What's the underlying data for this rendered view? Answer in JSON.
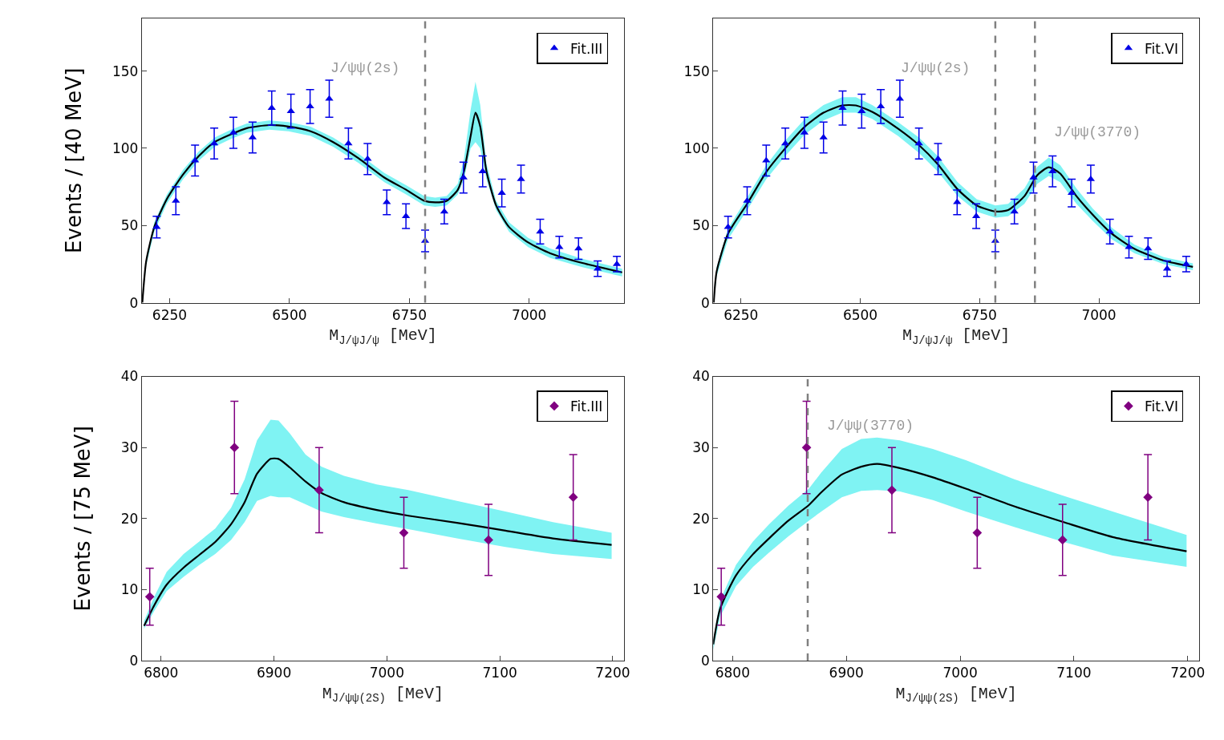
{
  "chart_data": [
    {
      "type": "scatter",
      "xlabel": "M$_{J/ψJ/ψ}$ [MeV]",
      "ylabel": "Events / [40 MeV]",
      "xlim": [
        6192,
        7198
      ],
      "xticks": [
        6250,
        6500,
        6750,
        7000
      ],
      "ylim": [
        0,
        184
      ],
      "yticks": [
        0,
        50,
        100,
        150
      ],
      "legend": "top right",
      "series": [
        {
          "type": "line",
          "color": "#000000",
          "marker": "none",
          "line_style": "solid",
          "x": [
            6193,
            6201,
            6218,
            6244,
            6278,
            6311,
            6344,
            6378,
            6411,
            6458,
            6498,
            6544,
            6591,
            6644,
            6698,
            6744,
            6781,
            6804,
            6828,
            6851,
            6864,
            6878,
            6888,
            6898,
            6911,
            6931,
            6958,
            6998,
            7044,
            7111,
            7194
          ],
          "values": [
            0,
            26.7,
            49,
            67,
            83,
            95,
            104,
            109,
            113,
            115,
            114,
            111,
            104,
            93.5,
            81,
            73,
            66,
            65,
            66,
            73,
            85,
            108,
            123,
            114,
            85,
            63,
            49,
            39,
            32,
            25.7,
            19.6
          ],
          "lower": [
            0,
            24,
            46,
            64,
            80,
            92,
            101,
            106,
            110,
            112,
            111,
            108,
            101,
            90.5,
            78,
            70,
            63,
            62,
            63,
            70,
            80,
            100,
            104,
            100,
            80,
            60,
            46,
            36,
            29,
            23,
            17
          ],
          "upper": [
            0,
            29,
            52,
            70,
            86,
            98,
            107,
            112,
            116,
            118,
            117,
            114,
            107,
            96.5,
            84,
            76,
            69,
            68,
            69,
            77,
            93,
            125,
            143,
            128,
            90,
            66,
            52,
            42,
            35,
            28.5,
            22
          ]
        },
        {
          "name": "Fit.III",
          "color": "#0000e6",
          "marker": "triangle",
          "x": [
            6223,
            6263,
            6303,
            6343,
            6383,
            6423,
            6463,
            6503,
            6543,
            6583,
            6623,
            6663,
            6703,
            6743,
            6783,
            6823,
            6863,
            6903,
            6943,
            6983,
            7023,
            7063,
            7103,
            7143,
            7183
          ],
          "values": [
            49,
            66,
            92,
            103,
            110,
            107,
            126,
            124,
            127,
            132,
            103,
            93,
            65,
            56,
            40,
            59,
            81,
            85,
            71,
            80,
            46,
            36,
            35,
            22,
            25
          ],
          "errors": [
            7,
            9,
            10,
            10,
            10,
            10,
            11,
            11,
            11,
            12,
            10,
            10,
            8,
            8,
            7,
            8,
            10,
            10,
            9,
            9,
            8,
            7,
            7,
            5,
            5
          ]
        }
      ],
      "ref_lines": [
        {
          "axis": "x",
          "value": 6783,
          "color": "#808080",
          "line_style": "dashed",
          "label": "J/ψψ(2s)"
        }
      ]
    },
    {
      "type": "scatter",
      "xlabel": "M$_{J/ψJ/ψ}$ [MeV]",
      "xlim": [
        6192,
        7210
      ],
      "xticks": [
        6250,
        6500,
        6750,
        7000
      ],
      "ylim": [
        0,
        184
      ],
      "yticks": [
        0,
        50,
        100,
        150
      ],
      "legend": "top right",
      "series": [
        {
          "type": "line",
          "color": "#000000",
          "marker": "none",
          "line_style": "solid",
          "x": [
            6193,
            6199,
            6223,
            6263,
            6303,
            6343,
            6384,
            6423,
            6462,
            6491,
            6525,
            6579,
            6623,
            6662,
            6704,
            6744,
            6783,
            6810,
            6844,
            6871,
            6895,
            6919,
            6953,
            6987,
            7027,
            7075,
            7136,
            7197
          ],
          "values": [
            0,
            20,
            44.7,
            64,
            84.6,
            100,
            114,
            123,
            127.7,
            127.7,
            123.6,
            112.7,
            102,
            89.8,
            73.4,
            63,
            59,
            60,
            69,
            82.6,
            87.7,
            83.6,
            69,
            57,
            44.7,
            34.8,
            27.3,
            23.2
          ],
          "lower": [
            0,
            17,
            41,
            60,
            80,
            95,
            109,
            118,
            123,
            123,
            119,
            108,
            97,
            85,
            69,
            59,
            55,
            56,
            64,
            77,
            82,
            78,
            64,
            53,
            41,
            32,
            25,
            21
          ],
          "upper": [
            0,
            23,
            48,
            68,
            89,
            105,
            119,
            128,
            133,
            133,
            128,
            117,
            107,
            95,
            78,
            67,
            63,
            64,
            74,
            88,
            94,
            89,
            74,
            61,
            48.5,
            37.5,
            29.5,
            25.5
          ]
        },
        {
          "name": "Fit.VI",
          "color": "#0000e6",
          "marker": "triangle",
          "x": [
            6223,
            6263,
            6303,
            6343,
            6383,
            6423,
            6463,
            6503,
            6543,
            6583,
            6623,
            6663,
            6703,
            6743,
            6783,
            6823,
            6863,
            6903,
            6943,
            6983,
            7023,
            7063,
            7103,
            7143,
            7183
          ],
          "values": [
            49,
            66,
            92,
            103,
            110,
            107,
            126,
            124,
            127,
            132,
            103,
            93,
            65,
            56,
            40,
            59,
            81,
            85,
            71,
            80,
            46,
            36,
            35,
            22,
            25
          ],
          "errors": [
            7,
            9,
            10,
            10,
            10,
            10,
            11,
            11,
            11,
            12,
            10,
            10,
            8,
            8,
            7,
            8,
            10,
            10,
            9,
            9,
            8,
            7,
            7,
            5,
            5
          ]
        }
      ],
      "ref_lines": [
        {
          "axis": "x",
          "value": 6783,
          "color": "#808080",
          "line_style": "dashed",
          "label": "J/ψψ(2s)"
        },
        {
          "axis": "x",
          "value": 6866,
          "color": "#808080",
          "line_style": "dashed",
          "label": "J/ψψ(3770)"
        }
      ]
    },
    {
      "type": "scatter",
      "xlabel": "M$_{J/ψψ(2S)}$ [MeV]",
      "ylabel": "Events / [75 MeV]",
      "xlim": [
        6783,
        7210
      ],
      "xticks": [
        6800,
        6900,
        7000,
        7100,
        7200
      ],
      "ylim": [
        0,
        40
      ],
      "yticks": [
        0,
        10,
        20,
        30,
        40
      ],
      "legend": "top right",
      "series": [
        {
          "type": "line",
          "color": "#000000",
          "marker": "none",
          "line_style": "solid",
          "x": [
            6785,
            6794,
            6805,
            6820,
            6834,
            6848,
            6862,
            6874,
            6885,
            6897,
            6904,
            6914,
            6928,
            6942,
            6962,
            6991,
            7019,
            7062,
            7105,
            7147,
            7199
          ],
          "values": [
            4.9,
            7.8,
            10.7,
            13.1,
            14.9,
            16.7,
            19.2,
            22.3,
            26.3,
            28.4,
            28.4,
            27.2,
            25.2,
            23.6,
            22.3,
            21.2,
            20.4,
            19.4,
            18.3,
            17.2,
            16.3
          ],
          "lower": [
            4.5,
            7,
            9.8,
            11.8,
            13.5,
            15,
            17,
            19.5,
            22.5,
            23.2,
            23,
            23,
            22,
            21,
            20.2,
            19.3,
            18.5,
            17.2,
            16,
            15,
            14.3
          ],
          "upper": [
            5.6,
            9,
            12.5,
            15,
            16.8,
            18.6,
            21.5,
            25.5,
            31,
            33.9,
            33.8,
            32,
            29,
            27.3,
            26,
            24.8,
            24,
            22.5,
            21,
            19.5,
            18
          ]
        },
        {
          "name": "Fit.III",
          "color": "#800080",
          "marker": "diamond",
          "x": [
            6790,
            6865,
            6940,
            7015,
            7090,
            7165
          ],
          "values": [
            9,
            30,
            24,
            18,
            17,
            23
          ],
          "errors": [
            4,
            6.5,
            6,
            5,
            5,
            6
          ]
        }
      ]
    },
    {
      "type": "scatter",
      "xlabel": "M$_{J/ψψ(2S)}$ [MeV]",
      "xlim": [
        6783,
        7210
      ],
      "xticks": [
        6800,
        6900,
        7000,
        7100,
        7200
      ],
      "ylim": [
        0,
        40
      ],
      "yticks": [
        0,
        10,
        20,
        30,
        40
      ],
      "legend": "top right",
      "series": [
        {
          "type": "line",
          "color": "#000000",
          "marker": "none",
          "line_style": "solid",
          "x": [
            6783,
            6789,
            6803,
            6818,
            6832,
            6849,
            6867,
            6878,
            6896,
            6913,
            6927,
            6947,
            6976,
            7005,
            7048,
            7091,
            7134,
            7199
          ],
          "values": [
            2.3,
            7.3,
            12,
            15,
            17.2,
            19.7,
            21.9,
            23.7,
            26.2,
            27.3,
            27.7,
            27.1,
            25.8,
            24.2,
            21.7,
            19.5,
            17.4,
            15.4
          ],
          "lower": [
            1.5,
            6.2,
            10.5,
            13.2,
            15.2,
            17.5,
            19.7,
            21,
            23,
            23.9,
            24,
            23.8,
            22.6,
            21,
            18.8,
            16.7,
            14.8,
            13.2
          ],
          "upper": [
            3,
            8.5,
            13.5,
            16.8,
            19.2,
            21.8,
            24.2,
            26.5,
            29.8,
            31.2,
            31.4,
            31,
            29.8,
            28.2,
            25.5,
            23.2,
            21,
            17.7
          ]
        },
        {
          "name": "Fit.VI",
          "color": "#800080",
          "marker": "diamond",
          "x": [
            6790,
            6865,
            6940,
            7015,
            7090,
            7165
          ],
          "values": [
            9,
            30,
            24,
            18,
            17,
            23
          ],
          "errors": [
            4,
            6.5,
            6,
            5,
            5,
            6
          ]
        }
      ],
      "ref_lines": [
        {
          "axis": "x",
          "value": 6866,
          "color": "#808080",
          "line_style": "dashed",
          "label": "J/ψψ(3770)"
        }
      ]
    }
  ]
}
